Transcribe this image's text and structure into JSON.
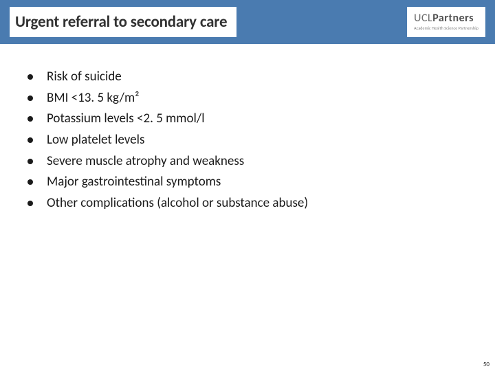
{
  "header": {
    "title": "Urgent referral to secondary care",
    "logo_main_light": "UCL",
    "logo_main_bold": "Partners",
    "logo_sub": "Academic Health Science Partnership"
  },
  "bullets": [
    "Risk of suicide",
    "BMI <13. 5 kg/m²",
    "Potassium levels <2. 5 mmol/l",
    "Low platelet levels",
    "Severe muscle atrophy and weakness",
    "Major gastrointestinal symptoms",
    "Other complications (alcohol or substance abuse)"
  ],
  "page_number": "50",
  "colors": {
    "header_bg": "#4a7bb0",
    "page_bg": "#ffffff",
    "title_text": "#323232",
    "body_text": "#1a1a1a",
    "logo_light": "#6a6a6a",
    "logo_bold": "#505050"
  },
  "typography": {
    "title_fontsize": 23,
    "title_weight": 700,
    "body_fontsize": 19,
    "body_weight": 400
  }
}
